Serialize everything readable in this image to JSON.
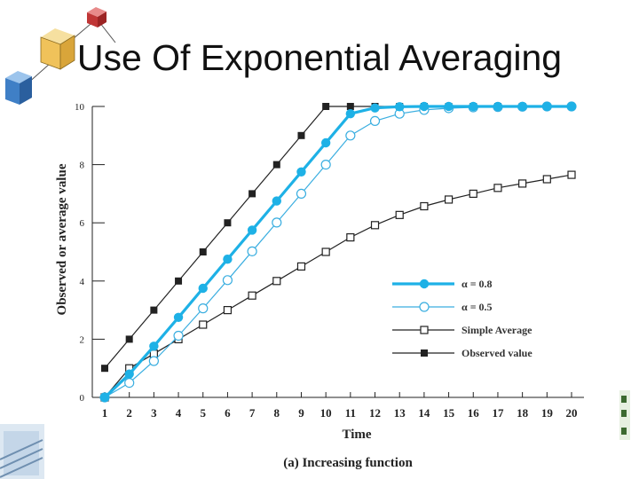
{
  "slide": {
    "title": "Use Of Exponential Averaging"
  },
  "colors": {
    "alpha08": "#1eb1e6",
    "alpha05": "#3aaee0",
    "black": "#222222"
  },
  "chart_data": {
    "type": "line",
    "caption": "(a) Increasing function",
    "xlabel": "Time",
    "ylabel": "Observed or average value",
    "xlim": [
      1,
      20
    ],
    "ylim": [
      0,
      10
    ],
    "x_ticks": [
      1,
      2,
      3,
      4,
      5,
      6,
      7,
      8,
      9,
      10,
      11,
      12,
      13,
      14,
      15,
      16,
      17,
      18,
      19,
      20
    ],
    "y_ticks": [
      0,
      2,
      4,
      6,
      8,
      10
    ],
    "grid": false,
    "legend_position": "center-right",
    "series": [
      {
        "name": "α = 0.8",
        "key": "a08",
        "marker": "filled-circle",
        "color": "#1eb1e6",
        "x": [
          1,
          2,
          3,
          4,
          5,
          6,
          7,
          8,
          9,
          10,
          11,
          12,
          13,
          14,
          15,
          16,
          17,
          18,
          19,
          20
        ],
        "values": [
          0,
          0.8,
          1.76,
          2.75,
          3.75,
          4.75,
          5.75,
          6.75,
          7.75,
          8.75,
          9.75,
          9.95,
          9.99,
          10,
          10,
          10,
          10,
          10,
          10,
          10
        ]
      },
      {
        "name": "α = 0.5",
        "key": "a05",
        "marker": "open-circle",
        "color": "#3aaee0",
        "x": [
          1,
          2,
          3,
          4,
          5,
          6,
          7,
          8,
          9,
          10,
          11,
          12,
          13,
          14,
          15,
          16,
          17,
          18,
          19,
          20
        ],
        "values": [
          0,
          0.5,
          1.25,
          2.12,
          3.06,
          4.03,
          5.02,
          6.01,
          7.0,
          8.0,
          9.0,
          9.5,
          9.75,
          9.88,
          9.94,
          9.97,
          9.98,
          9.99,
          10,
          10
        ]
      },
      {
        "name": "Simple Average",
        "key": "simple",
        "marker": "open-square",
        "color": "#222222",
        "x": [
          1,
          2,
          3,
          4,
          5,
          6,
          7,
          8,
          9,
          10,
          11,
          12,
          13,
          14,
          15,
          16,
          17,
          18,
          19,
          20
        ],
        "values": [
          0,
          1,
          1.5,
          2,
          2.5,
          3,
          3.5,
          4,
          4.5,
          5,
          5.5,
          5.92,
          6.27,
          6.57,
          6.8,
          7.0,
          7.2,
          7.35,
          7.5,
          7.65
        ]
      },
      {
        "name": "Observed value",
        "key": "observed",
        "marker": "filled-square",
        "color": "#222222",
        "x": [
          1,
          2,
          3,
          4,
          5,
          6,
          7,
          8,
          9,
          10,
          11,
          12,
          13,
          14,
          15,
          16,
          17,
          18,
          19,
          20
        ],
        "values": [
          1,
          2,
          3,
          4,
          5,
          6,
          7,
          8,
          9,
          10,
          10,
          10,
          10,
          10,
          10,
          10,
          10,
          10,
          10,
          10
        ]
      }
    ]
  }
}
